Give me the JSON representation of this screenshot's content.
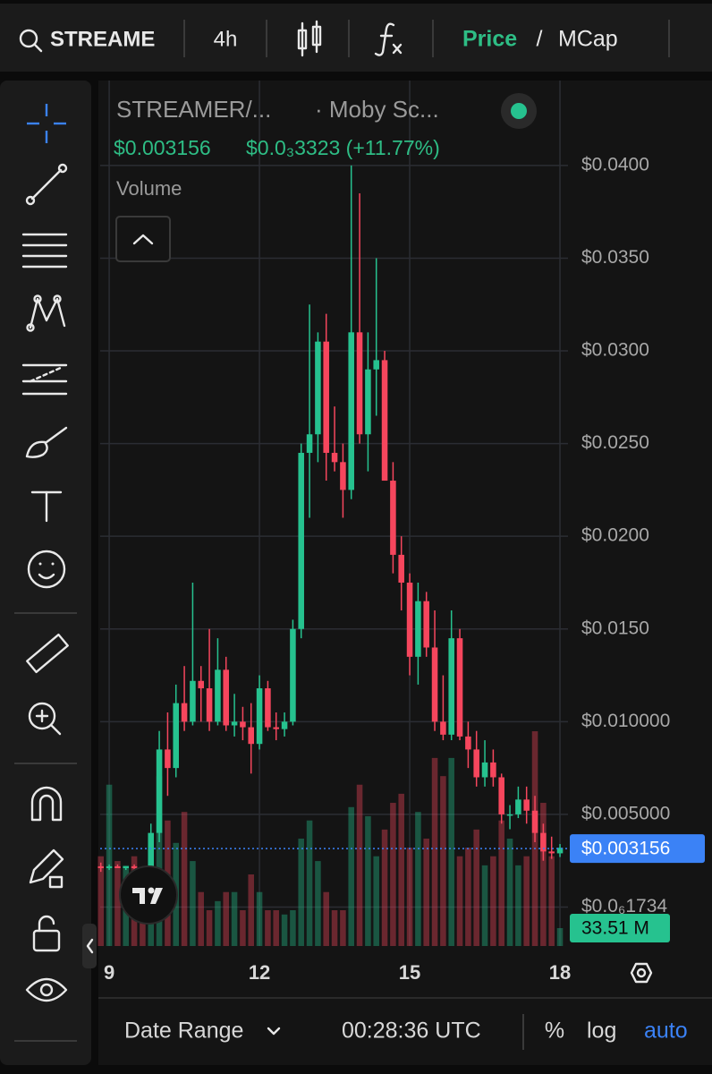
{
  "topbar": {
    "search": "STREAME",
    "interval": "4h",
    "price": "Price",
    "separator": "/",
    "mcap": "MCap"
  },
  "legend": {
    "symbol": "STREAMER/...",
    "exchange": "· Moby Sc...",
    "change": "$0.0₃3323 (+11.77%)",
    "volume": "Volume"
  },
  "bottombar": {
    "range": "Date Range",
    "time": "00:28:36 UTC",
    "percent": "%",
    "log": "log",
    "auto": "auto"
  },
  "chart_data": {
    "type": "candlestick",
    "up_color": "#26c28f",
    "down_color": "#f6465d",
    "x": [
      8.833,
      9,
      9.167,
      9.333,
      9.5,
      9.667,
      9.833,
      10,
      10.167,
      10.333,
      10.5,
      10.667,
      10.833,
      11,
      11.167,
      11.333,
      11.5,
      11.667,
      11.833,
      12,
      12.167,
      12.333,
      12.5,
      12.667,
      12.833,
      13,
      13.167,
      13.333,
      13.5,
      13.667,
      13.833,
      14,
      14.167,
      14.333,
      14.5,
      14.667,
      14.833,
      15,
      15.167,
      15.333,
      15.5,
      15.667,
      15.833,
      16,
      16.167,
      16.333,
      16.5,
      16.667,
      16.833,
      17,
      17.167,
      17.333,
      17.5,
      17.667,
      17.833,
      18
    ],
    "open": [
      0.0022,
      0.0021,
      0.0022,
      0.0021,
      0.0022,
      0.0021,
      0.002,
      0.004,
      0.0085,
      0.0075,
      0.011,
      0.01,
      0.0122,
      0.0118,
      0.01,
      0.0128,
      0.0098,
      0.01,
      0.0097,
      0.0088,
      0.0118,
      0.0097,
      0.0096,
      0.01,
      0.015,
      0.0245,
      0.0255,
      0.0305,
      0.0245,
      0.024,
      0.0225,
      0.031,
      0.0255,
      0.029,
      0.0295,
      0.023,
      0.019,
      0.0175,
      0.0135,
      0.0165,
      0.014,
      0.01,
      0.0093,
      0.0145,
      0.0092,
      0.0085,
      0.007,
      0.0078,
      0.007,
      0.005,
      0.005,
      0.0058,
      0.0052,
      0.004,
      0.003,
      0.0029
    ],
    "high": [
      0.0024,
      0.0023,
      0.0023,
      0.0022,
      0.0023,
      0.0022,
      0.0045,
      0.0095,
      0.0105,
      0.012,
      0.013,
      0.0175,
      0.013,
      0.015,
      0.0145,
      0.0135,
      0.0115,
      0.0108,
      0.011,
      0.0125,
      0.0122,
      0.0105,
      0.0105,
      0.0155,
      0.025,
      0.0325,
      0.031,
      0.032,
      0.027,
      0.025,
      0.04,
      0.0385,
      0.031,
      0.035,
      0.03,
      0.024,
      0.02,
      0.018,
      0.0175,
      0.017,
      0.016,
      0.0125,
      0.016,
      0.015,
      0.01,
      0.0095,
      0.009,
      0.0085,
      0.0072,
      0.0055,
      0.0065,
      0.0065,
      0.006,
      0.0045,
      0.0038,
      0.0034
    ],
    "low": [
      0.0019,
      0.002,
      0.0021,
      0.002,
      0.002,
      0.0018,
      0.0019,
      0.0035,
      0.006,
      0.007,
      0.0095,
      0.0098,
      0.01,
      0.0095,
      0.0098,
      0.0095,
      0.0092,
      0.009,
      0.0072,
      0.0085,
      0.0095,
      0.009,
      0.0092,
      0.0098,
      0.0145,
      0.021,
      0.024,
      0.023,
      0.0235,
      0.021,
      0.022,
      0.025,
      0.0235,
      0.0265,
      0.023,
      0.018,
      0.016,
      0.0125,
      0.012,
      0.0135,
      0.0095,
      0.009,
      0.009,
      0.009,
      0.0075,
      0.0065,
      0.0065,
      0.0065,
      0.0045,
      0.0042,
      0.0048,
      0.0045,
      0.0035,
      0.0025,
      0.0026,
      0.0027
    ],
    "close": [
      0.0021,
      0.0022,
      0.0021,
      0.0022,
      0.0021,
      0.002,
      0.004,
      0.0085,
      0.0075,
      0.011,
      0.01,
      0.0122,
      0.0118,
      0.01,
      0.0128,
      0.0098,
      0.01,
      0.0097,
      0.0088,
      0.0118,
      0.0097,
      0.0096,
      0.01,
      0.015,
      0.0245,
      0.0255,
      0.0305,
      0.0245,
      0.024,
      0.0225,
      0.031,
      0.0255,
      0.029,
      0.0295,
      0.023,
      0.019,
      0.0175,
      0.0135,
      0.0165,
      0.014,
      0.01,
      0.0093,
      0.0145,
      0.0092,
      0.0085,
      0.007,
      0.0078,
      0.007,
      0.005,
      0.005,
      0.0058,
      0.0052,
      0.004,
      0.003,
      0.0029,
      0.0032
    ],
    "volume": [
      168,
      302,
      159,
      151,
      168,
      134,
      184,
      318,
      235,
      193,
      251,
      159,
      101,
      67,
      84,
      101,
      101,
      67,
      134,
      101,
      67,
      67,
      59,
      67,
      201,
      235,
      159,
      101,
      67,
      67,
      260,
      302,
      243,
      168,
      218,
      268,
      285,
      184,
      251,
      201,
      352,
      318,
      352,
      168,
      184,
      218,
      151,
      168,
      235,
      201,
      151,
      168,
      402,
      268,
      168,
      33.51
    ],
    "volume_ylim": [
      0,
      1620
    ],
    "xlim": [
      8.82,
      18.16
    ],
    "xticks": [
      9,
      12,
      15,
      18
    ],
    "ylim": [
      -0.0021,
      0.04458
    ],
    "yticks": [
      {
        "value": 1.734e-07,
        "label": "$0.0₆1734"
      },
      {
        "value": 0.005,
        "label": "$0.005000"
      },
      {
        "value": 0.01,
        "label": "$0.010000"
      },
      {
        "value": 0.015,
        "label": "$0.0150"
      },
      {
        "value": 0.02,
        "label": "$0.0200"
      },
      {
        "value": 0.025,
        "label": "$0.0250"
      },
      {
        "value": 0.03,
        "label": "$0.0300"
      },
      {
        "value": 0.035,
        "label": "$0.0350"
      },
      {
        "value": 0.04,
        "label": "$0.0400"
      }
    ],
    "current_price": {
      "value": 0.003156,
      "label": "$0.003156"
    },
    "current_volume": {
      "value": 33.51,
      "label": "33.51 M"
    },
    "grid": true
  }
}
